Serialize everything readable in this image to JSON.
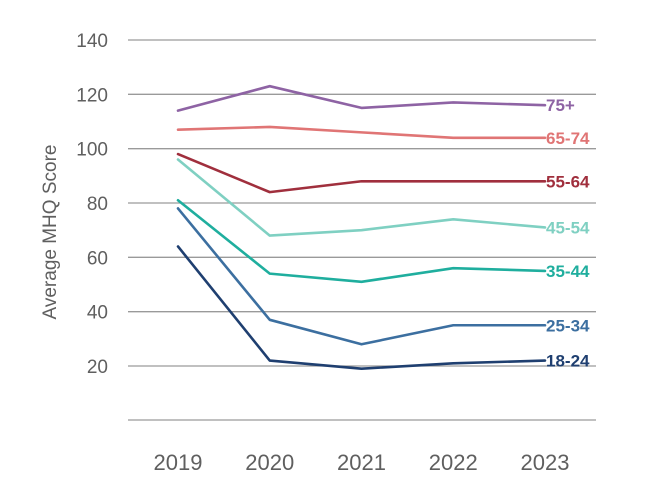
{
  "chart_data": {
    "type": "line",
    "title": "",
    "xlabel": "",
    "ylabel": "Average MHQ Score",
    "x": [
      "2019",
      "2020",
      "2021",
      "2022",
      "2023"
    ],
    "ylim": [
      0,
      140
    ],
    "yticks": [
      20,
      40,
      60,
      80,
      100,
      120,
      140
    ],
    "grid": true,
    "legend": "inline-right",
    "series": [
      {
        "name": "75+",
        "color": "#8e63a4",
        "values": [
          114,
          123,
          115,
          117,
          116
        ]
      },
      {
        "name": "65-74",
        "color": "#e07575",
        "values": [
          107,
          108,
          106,
          104,
          104
        ]
      },
      {
        "name": "55-64",
        "color": "#a02f3d",
        "values": [
          98,
          84,
          88,
          88,
          88
        ]
      },
      {
        "name": "45-54",
        "color": "#7fd0c2",
        "values": [
          96,
          68,
          70,
          74,
          71
        ]
      },
      {
        "name": "35-44",
        "color": "#1fae9e",
        "values": [
          81,
          54,
          51,
          56,
          55
        ]
      },
      {
        "name": "25-34",
        "color": "#3c6fa0",
        "values": [
          78,
          37,
          28,
          35,
          35
        ]
      },
      {
        "name": "18-24",
        "color": "#1f3f70",
        "values": [
          64,
          22,
          19,
          21,
          22
        ]
      }
    ]
  }
}
